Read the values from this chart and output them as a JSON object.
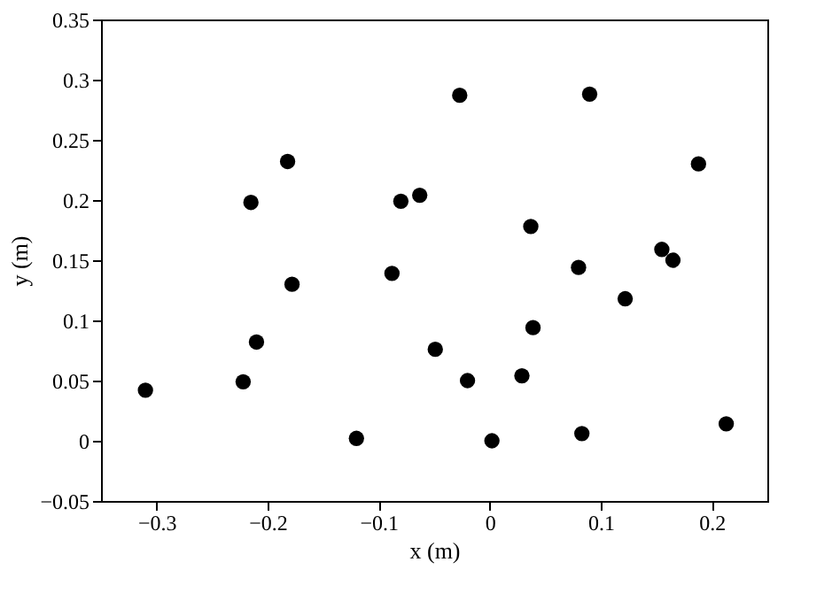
{
  "chart_data": {
    "type": "scatter",
    "xlabel": "x (m)",
    "ylabel": "y (m)",
    "x": [
      -0.31,
      -0.222,
      -0.215,
      -0.21,
      -0.182,
      -0.178,
      -0.12,
      -0.088,
      -0.08,
      -0.063,
      -0.049,
      -0.027,
      -0.02,
      0.002,
      0.029,
      0.037,
      0.039,
      0.08,
      0.083,
      0.09,
      0.122,
      0.155,
      0.165,
      0.188,
      0.213
    ],
    "series": [
      {
        "color": "#000000",
        "values": [
          0.042,
          0.049,
          0.198,
          0.082,
          0.232,
          0.13,
          0.002,
          0.139,
          0.199,
          0.204,
          0.076,
          0.287,
          0.05,
          0.0,
          0.054,
          0.178,
          0.094,
          0.144,
          0.006,
          0.288,
          0.118,
          0.159,
          0.15,
          0.23,
          0.014
        ]
      }
    ],
    "xlim": [
      -0.35,
      0.25
    ],
    "xticks": [
      {
        "value": -0.3,
        "label": "−0.3"
      },
      {
        "value": -0.2,
        "label": "−0.2"
      },
      {
        "value": -0.1,
        "label": "−0.1"
      },
      0,
      0.1,
      0.2
    ],
    "ylim": [
      -0.05,
      0.35
    ],
    "yticks": [
      {
        "value": -0.05,
        "label": "−0.05"
      },
      0,
      0.05,
      0.1,
      0.15,
      0.2,
      0.25,
      0.3,
      0.35
    ],
    "marker": "circle",
    "grid": false
  }
}
